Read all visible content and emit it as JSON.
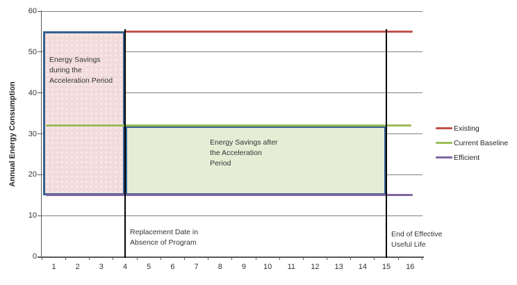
{
  "chart_data": {
    "type": "line",
    "title": "",
    "ylabel": "Annual Energy Consumption",
    "xlabel": "",
    "ylim": [
      0,
      60
    ],
    "ytick_step": 10,
    "x_ticks": [
      1,
      2,
      3,
      4,
      5,
      6,
      7,
      8,
      9,
      10,
      11,
      12,
      13,
      14,
      15,
      16
    ],
    "grid": true,
    "legend_position": "right",
    "gridline_color": "#808080",
    "axis_color": "#595959",
    "series": [
      {
        "name": "Existing",
        "slug": "existing",
        "color": "#C0504D",
        "value": 55,
        "x_start": 4,
        "x_end": 16.1
      },
      {
        "name": "Current Baseline",
        "slug": "current-baseline",
        "color": "#9BBB59",
        "value": 32,
        "x_start": 0.67,
        "x_end": 16.05
      },
      {
        "name": "Efficient",
        "slug": "efficient",
        "color": "#8064A2",
        "value": 15,
        "x_start": 0.67,
        "x_end": 16.1
      }
    ],
    "shaded_boxes": [
      {
        "id": "acceleration-savings",
        "x_start": 0.55,
        "x_end": 4,
        "y_start": 15,
        "y_end": 55,
        "fill": "#F2DCDB",
        "border": "#366092",
        "pattern": "dotted",
        "label_x": 0.81,
        "label_y": 49.3,
        "lines": [
          "Energy Savings",
          "during the",
          "Acceleration Period"
        ]
      },
      {
        "id": "post-acceleration-savings",
        "x_start": 4,
        "x_end": 15,
        "y_start": 15,
        "y_end": 32,
        "fill": "#E5EDD5",
        "border": "#366092",
        "pattern": "solid",
        "label_x": 7.57,
        "label_y": 29.1,
        "lines": [
          "Energy Savings after",
          "the Acceleration",
          "Period"
        ]
      }
    ],
    "vlines": [
      {
        "id": "replacement-date",
        "x": 4,
        "y_top": 55,
        "label_y": 7.1,
        "lines": [
          "Replacement Date in",
          "Absence of Program"
        ]
      },
      {
        "id": "end-of-useful-life",
        "x": 15,
        "y_top": 55,
        "label_y": 6.7,
        "lines": [
          "End of Effective",
          "Useful Life"
        ]
      }
    ]
  }
}
